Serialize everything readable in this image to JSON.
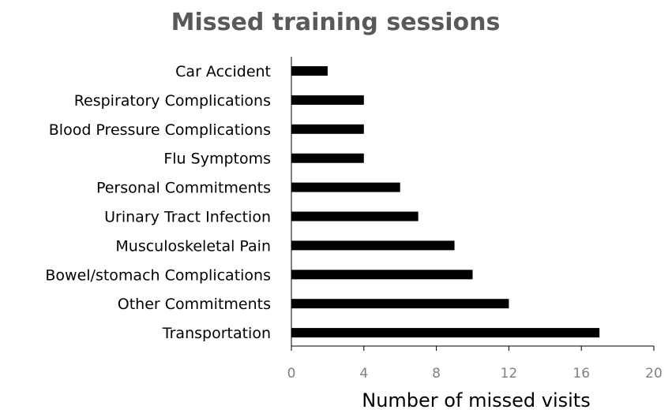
{
  "chart_data": {
    "type": "bar",
    "orientation": "horizontal",
    "title": "Missed training sessions",
    "xlabel": "Number of missed visits",
    "ylabel": "",
    "xlim": [
      0,
      20
    ],
    "xticks": [
      0,
      4,
      8,
      12,
      16,
      20
    ],
    "grid": false,
    "bar_color": "#000000",
    "categories": [
      "Car Accident",
      "Respiratory Complications",
      "Blood Pressure Complications",
      "Flu Symptoms",
      "Personal Commitments",
      "Urinary Tract Infection",
      "Musculoskeletal Pain",
      "Bowel/stomach Complications",
      "Other Commitments",
      "Transportation"
    ],
    "values": [
      2,
      4,
      4,
      4,
      6,
      7,
      9,
      10,
      12,
      17
    ]
  }
}
